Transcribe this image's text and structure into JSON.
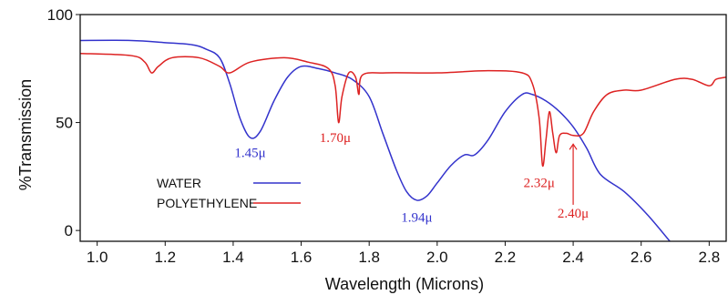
{
  "chart_data": {
    "type": "line",
    "title": "",
    "xlabel": "Wavelength  (Microns)",
    "ylabel": "%Transmission",
    "xlim": [
      0.95,
      2.85
    ],
    "ylim": [
      -5,
      100
    ],
    "x_ticks": [
      1.0,
      1.2,
      1.4,
      1.6,
      1.8,
      2.0,
      2.2,
      2.4,
      2.6,
      2.8
    ],
    "x_tick_labels": [
      "1.0",
      "1.2",
      "1.4",
      "1.6",
      "1.8",
      "2.0",
      "2.2",
      "2.4",
      "2.6",
      "2.8"
    ],
    "y_ticks": [
      0,
      50,
      100
    ],
    "y_tick_labels": [
      "0",
      "50",
      "100"
    ],
    "grid": false,
    "legend_position": "left",
    "legend": [
      {
        "label": "WATER",
        "color": "#3333cc"
      },
      {
        "label": "POLYETHYLENE",
        "color": "#dd2222"
      }
    ],
    "series": [
      {
        "color": "#3333cc",
        "x": [
          0.95,
          1.1,
          1.2,
          1.28,
          1.32,
          1.36,
          1.39,
          1.42,
          1.45,
          1.48,
          1.52,
          1.56,
          1.6,
          1.65,
          1.7,
          1.75,
          1.8,
          1.84,
          1.88,
          1.91,
          1.94,
          1.97,
          2.0,
          2.04,
          2.08,
          2.11,
          2.15,
          2.2,
          2.25,
          2.28,
          2.32,
          2.36,
          2.4,
          2.44,
          2.48,
          2.55,
          2.62,
          2.7
        ],
        "y": [
          88,
          88,
          87,
          86,
          84,
          80,
          68,
          52,
          43,
          46,
          60,
          71,
          76,
          75,
          73,
          70,
          62,
          45,
          28,
          18,
          14,
          16,
          22,
          30,
          35,
          35,
          42,
          55,
          63,
          63,
          60,
          55,
          48,
          38,
          26,
          18,
          7,
          -8
        ]
      },
      {
        "color": "#dd2222",
        "x": [
          0.95,
          1.1,
          1.14,
          1.16,
          1.18,
          1.22,
          1.3,
          1.36,
          1.39,
          1.45,
          1.55,
          1.62,
          1.68,
          1.7,
          1.71,
          1.72,
          1.74,
          1.76,
          1.77,
          1.78,
          1.85,
          2.0,
          2.15,
          2.25,
          2.28,
          2.3,
          2.31,
          2.32,
          2.33,
          2.34,
          2.35,
          2.36,
          2.38,
          2.4,
          2.43,
          2.46,
          2.5,
          2.55,
          2.6,
          2.7,
          2.75,
          2.8,
          2.82,
          2.85
        ],
        "y": [
          82,
          81,
          78,
          73,
          76,
          80,
          80,
          76,
          73,
          78,
          80,
          78,
          75,
          67,
          50,
          62,
          73,
          71,
          63,
          72,
          73,
          73,
          74,
          73,
          68,
          52,
          30,
          42,
          55,
          45,
          36,
          44,
          45,
          44,
          45,
          55,
          63,
          65,
          65,
          70,
          70,
          67,
          70,
          71
        ]
      }
    ],
    "annotations": [
      {
        "text": "1.45μ",
        "x": 1.45,
        "y": 34,
        "color": "#3333cc"
      },
      {
        "text": "1.70μ",
        "x": 1.7,
        "y": 41,
        "color": "#dd2222"
      },
      {
        "text": "1.94μ",
        "x": 1.94,
        "y": 4,
        "color": "#3333cc"
      },
      {
        "text": "2.32μ",
        "x": 2.3,
        "y": 20,
        "color": "#dd2222"
      },
      {
        "text": "2.40μ",
        "x": 2.4,
        "y": 6,
        "color": "#dd2222"
      }
    ]
  }
}
